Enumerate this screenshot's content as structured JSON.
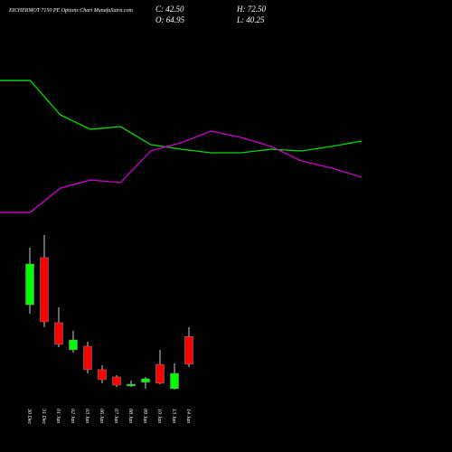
{
  "chart_data": [
    {
      "type": "candlestick",
      "title": "EICHERMOT 7150 PE Options Chart MunafaSutra.com",
      "readout": [
        "C: 42.50",
        "H: 72.50",
        "O: 64.95",
        "L: 40.25"
      ],
      "categories": [
        "30 Dec",
        "31 Dec",
        "01 Jan",
        "02 Jan",
        "03 Jan",
        "06 Jan",
        "07 Jan",
        "08 Jan",
        "09 Jan",
        "10 Jan",
        "13 Jan",
        "14 Jan"
      ],
      "open": [
        90.8,
        129.0,
        76.2,
        54.2,
        57.1,
        38.1,
        32.2,
        24.9,
        27.8,
        42.4,
        22.7,
        64.95
      ],
      "high": [
        137.0,
        147.3,
        88.6,
        69.6,
        60.8,
        41.7,
        33.7,
        29.3,
        32.2,
        54.2,
        43.2,
        72.5
      ],
      "low": [
        83.5,
        72.5,
        56.4,
        52.0,
        35.1,
        27.1,
        24.1,
        24.1,
        22.7,
        26.3,
        21.9,
        40.25
      ],
      "close": [
        123.8,
        76.9,
        58.6,
        62.2,
        38.1,
        30.0,
        25.6,
        26.3,
        30.7,
        27.1,
        35.1,
        42.5
      ],
      "up_color": "#00ff00",
      "down_color": "#ff0000",
      "ylim": [
        15.3,
        154.6
      ]
    },
    {
      "type": "line",
      "x": [
        0,
        1,
        2,
        3,
        4,
        5,
        6,
        7,
        8,
        9,
        10,
        11,
        12
      ],
      "xlim": [
        0,
        12
      ],
      "ylim": [
        0,
        100
      ],
      "series": [
        {
          "color": "#00dd00",
          "values": [
            89.4,
            89.4,
            68.3,
            59.4,
            61.1,
            50,
            47.2,
            45,
            45,
            47.2,
            46.1,
            48.9,
            52.2
          ]
        },
        {
          "color": "#cc00cc",
          "values": [
            8.3,
            8.3,
            23.3,
            28.3,
            26.7,
            46.1,
            51.1,
            58.3,
            54.4,
            48.9,
            40,
            35.6,
            30
          ]
        }
      ]
    }
  ]
}
